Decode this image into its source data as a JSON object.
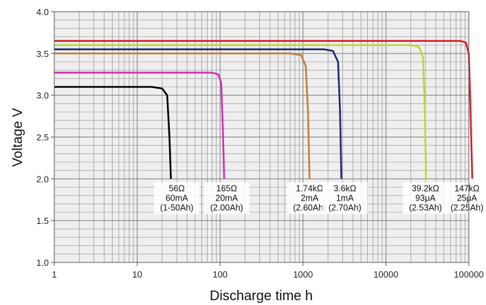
{
  "chart_data": {
    "type": "line",
    "title": "",
    "xlabel": "Discharge time h",
    "ylabel": "Voltage V",
    "xscale": "log",
    "xlim": [
      1,
      100000
    ],
    "ylim": [
      1.0,
      4.0
    ],
    "grid": true,
    "x_ticks": [
      {
        "value": 1,
        "label": "1"
      },
      {
        "value": 10,
        "label": "10"
      },
      {
        "value": 100,
        "label": "100"
      },
      {
        "value": 1000,
        "label": "1000"
      },
      {
        "value": 10000,
        "label": "10000"
      },
      {
        "value": 100000,
        "label": "100000"
      }
    ],
    "y_ticks": [
      {
        "value": 1.0,
        "label": "1.0"
      },
      {
        "value": 1.5,
        "label": "1.5"
      },
      {
        "value": 2.0,
        "label": "2.0"
      },
      {
        "value": 2.5,
        "label": "2.5"
      },
      {
        "value": 3.0,
        "label": "3.0"
      },
      {
        "value": 3.5,
        "label": "3.5"
      },
      {
        "value": 4.0,
        "label": "4.0"
      }
    ],
    "series": [
      {
        "color": "#000000",
        "x": [
          1,
          15,
          20,
          23,
          24.5,
          25.5
        ],
        "y": [
          3.1,
          3.1,
          3.08,
          3.0,
          2.5,
          2.0
        ]
      },
      {
        "color": "#d02fb4",
        "x": [
          1,
          80,
          95,
          103,
          108,
          112
        ],
        "y": [
          3.27,
          3.27,
          3.25,
          3.15,
          2.6,
          2.0
        ]
      },
      {
        "color": "#c0803f",
        "x": [
          1,
          700,
          950,
          1080,
          1150,
          1200
        ],
        "y": [
          3.5,
          3.5,
          3.48,
          3.35,
          2.8,
          2.0
        ]
      },
      {
        "color": "#1c2a6b",
        "x": [
          1,
          1800,
          2300,
          2650,
          2800,
          2900
        ],
        "y": [
          3.55,
          3.55,
          3.53,
          3.4,
          2.8,
          2.0
        ]
      },
      {
        "color": "#b9d936",
        "x": [
          1,
          20000,
          25000,
          28000,
          29500,
          30500
        ],
        "y": [
          3.6,
          3.6,
          3.58,
          3.45,
          2.8,
          2.0
        ]
      },
      {
        "color": "#d81e2a",
        "x": [
          1,
          80000,
          92000,
          100000,
          105000,
          110000
        ],
        "y": [
          3.65,
          3.65,
          3.63,
          3.5,
          2.8,
          2.0
        ]
      }
    ],
    "annotations": [
      {
        "x": 30,
        "y": 1.95,
        "lines": [
          "56Ω",
          "60mA",
          "(1-50Ah)"
        ]
      },
      {
        "x": 120,
        "y": 1.95,
        "lines": [
          "165Ω",
          "20mA",
          "(2.00Ah)"
        ]
      },
      {
        "x": 1200,
        "y": 1.95,
        "lines": [
          "1.74kΩ",
          "2mA",
          "(2.60Ah)"
        ]
      },
      {
        "x": 3200,
        "y": 1.95,
        "lines": [
          "3.6kΩ",
          "1mA",
          "(2.70Ah)"
        ]
      },
      {
        "x": 30000,
        "y": 1.95,
        "lines": [
          "39.2kΩ",
          "93μA",
          "(2.53Ah)"
        ]
      },
      {
        "x": 95000,
        "y": 1.95,
        "lines": [
          "147kΩ",
          "25μA",
          "(2.25Ah)"
        ]
      }
    ]
  }
}
